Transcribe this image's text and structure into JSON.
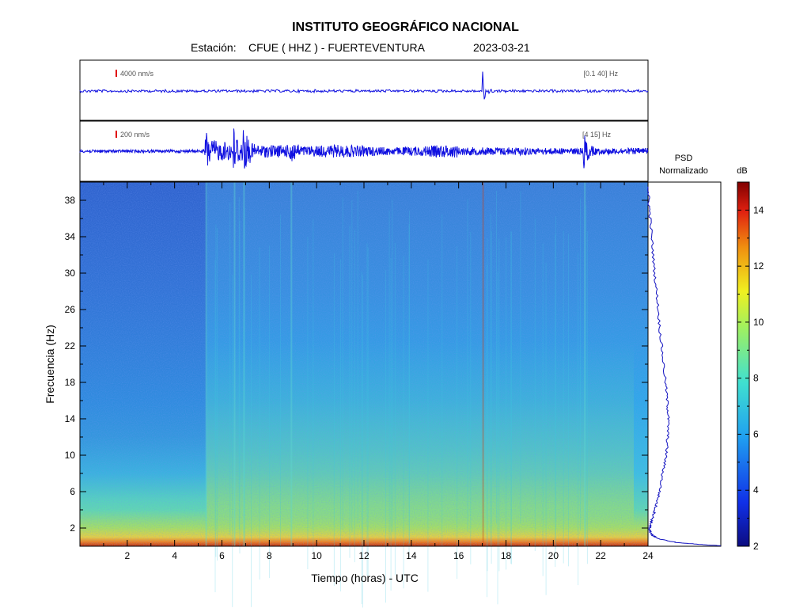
{
  "header": {
    "title": "INSTITUTO GEOGRÁFICO NACIONAL",
    "station_label": "Estación:",
    "station": "CFUE ( HHZ ) - FUERTEVENTURA",
    "date": "2023-03-21"
  },
  "chart_data": [
    {
      "type": "line",
      "panel": "seismogram-top",
      "scale_label": "4000 nm/s",
      "filter_label": "[0.1 40]  Hz",
      "xlim": [
        0,
        24
      ],
      "events": [
        {
          "x": 17.0,
          "note": "largest transient"
        }
      ]
    },
    {
      "type": "line",
      "panel": "seismogram-bottom",
      "scale_label": "200 nm/s",
      "filter_label": "[4 15]  Hz",
      "xlim": [
        0,
        24
      ],
      "events": [
        {
          "x": 5.3
        },
        {
          "x": 6.5
        },
        {
          "x": 6.9
        },
        {
          "x": 8.9
        },
        {
          "x": 21.3
        }
      ]
    },
    {
      "type": "heatmap",
      "panel": "spectrogram",
      "xlabel": "Tiempo (horas) - UTC",
      "ylabel": "Frecuencia  (Hz)",
      "xlim": [
        0,
        24
      ],
      "ylim": [
        0,
        40
      ],
      "x_ticks": [
        "2",
        "4",
        "6",
        "8",
        "10",
        "12",
        "14",
        "16",
        "18",
        "20",
        "22",
        "24"
      ],
      "y_ticks": [
        "2",
        "6",
        "10",
        "14",
        "18",
        "22",
        "26",
        "30",
        "34",
        "38"
      ],
      "colorbar": {
        "label": "dB",
        "range": [
          2,
          15
        ],
        "ticks": [
          "2",
          "4",
          "6",
          "8",
          "10",
          "12",
          "14"
        ]
      }
    },
    {
      "type": "line",
      "panel": "psd",
      "title_line1": "PSD",
      "title_line2": "Normalizado",
      "x": [
        0.005,
        0.01,
        0.03,
        0.06,
        0.09,
        0.13,
        0.16,
        0.2,
        0.24,
        0.27,
        0.28,
        0.27,
        0.25,
        0.2,
        0.16,
        0.11,
        0.08,
        0.05,
        0.03,
        0.02,
        0.03,
        0.06,
        0.15,
        0.4,
        0.8,
        1.0
      ],
      "y": [
        39.5,
        38,
        36,
        33,
        30,
        27,
        24,
        21,
        18,
        15.5,
        14,
        12,
        10,
        8,
        6,
        4.5,
        3.5,
        2.8,
        2.2,
        2.0,
        1.6,
        1.2,
        0.8,
        0.4,
        0.15,
        0.05
      ]
    }
  ]
}
